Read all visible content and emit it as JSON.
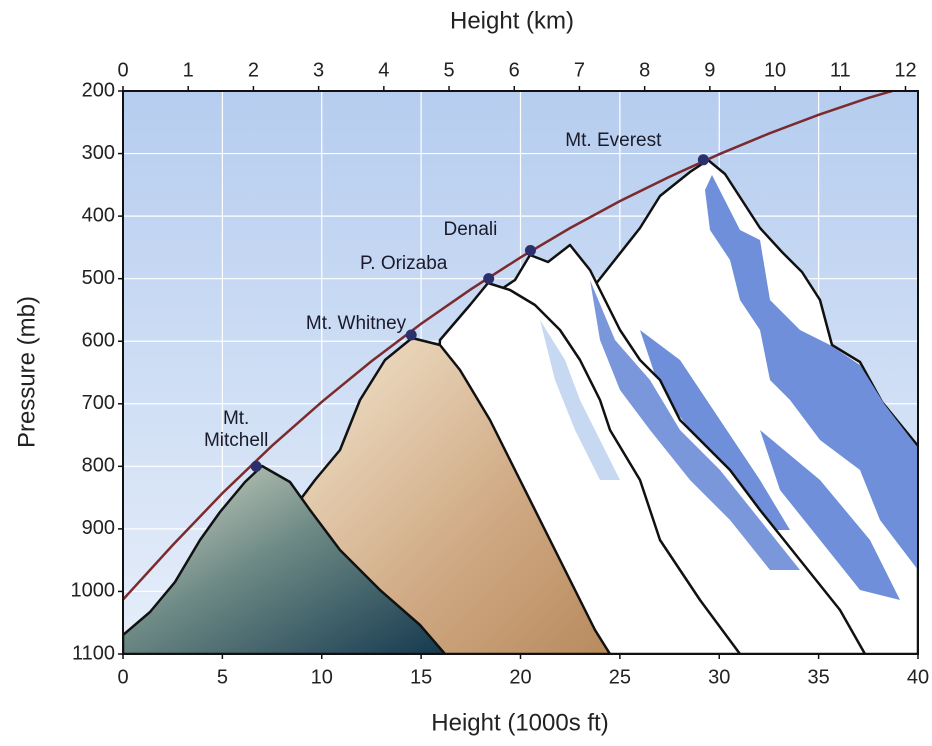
{
  "chart_data": {
    "type": "line",
    "x_label": "Height (1000s ft)",
    "x2_label": "Height (km)",
    "y_label": "Pressure (mb)",
    "xlim": [
      0,
      40
    ],
    "xticks": [
      0,
      5,
      10,
      15,
      20,
      25,
      30,
      35,
      40
    ],
    "x2lim": [
      0,
      12.192
    ],
    "x2ticks": [
      0,
      1,
      2,
      3,
      4,
      5,
      6,
      7,
      8,
      9,
      10,
      11,
      12
    ],
    "ylim": [
      1100,
      200
    ],
    "yticks": [
      200,
      300,
      400,
      500,
      600,
      700,
      800,
      900,
      1000,
      1100
    ],
    "grid": true,
    "series": [
      {
        "type": "line",
        "color": "#7b2b2e",
        "x": [
          0,
          2.5,
          5,
          7.5,
          10,
          12.5,
          15,
          17.5,
          20,
          22.5,
          25,
          27.5,
          30,
          32.5,
          35,
          37.5,
          38.7
        ],
        "values": [
          1013,
          926,
          843,
          767,
          697,
          632,
          572,
          517,
          466,
          419,
          376,
          337,
          301,
          268,
          238,
          211,
          200
        ]
      },
      {
        "type": "scatter",
        "color": "#2b2f6b",
        "x": [
          6.7,
          14.5,
          18.4,
          20.5,
          29.2
        ],
        "values": [
          800,
          590,
          500,
          455,
          310
        ],
        "labels": [
          "Mt. Mitchell",
          "Mt. Whitney",
          "P. Orizaba",
          "Denali",
          "Mt. Everest"
        ]
      }
    ]
  }
}
